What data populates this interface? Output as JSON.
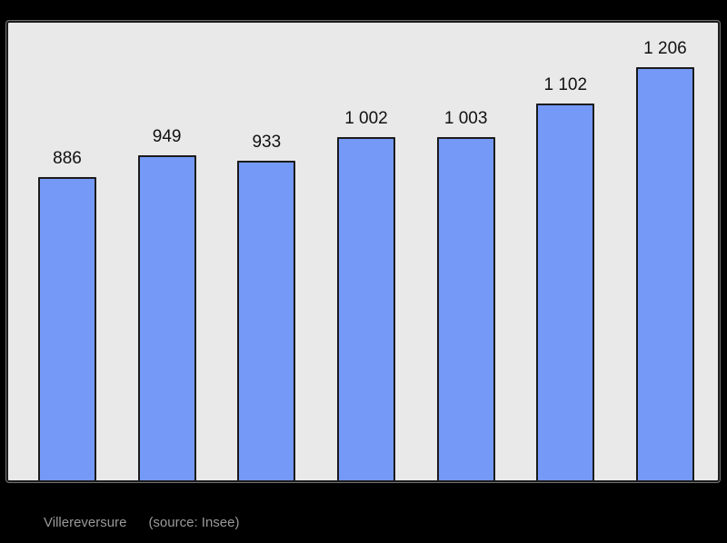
{
  "page": {
    "background": "#000000"
  },
  "plot": {
    "background": "#E9E9E9",
    "border_color": "#1C1C1C"
  },
  "chart_data": {
    "type": "bar",
    "title": "Villereversure",
    "source_note": "(source: Insee)",
    "values": [
      886,
      949,
      933,
      1002,
      1003,
      1102,
      1206
    ],
    "value_labels": [
      "886",
      "949",
      "933",
      "1 002",
      "1 003",
      "1 102",
      "1 206"
    ],
    "categories": [
      "",
      "",
      "",
      "",
      "",
      "",
      ""
    ],
    "bar_color": "#7599F7",
    "bar_border_color": "#1B1B1B",
    "value_label_color": "#111111",
    "ylim": [
      0,
      1340
    ],
    "grid": false,
    "legend": false,
    "axis_tick_labels_visible": false
  },
  "caption": {
    "color": "#999999"
  }
}
